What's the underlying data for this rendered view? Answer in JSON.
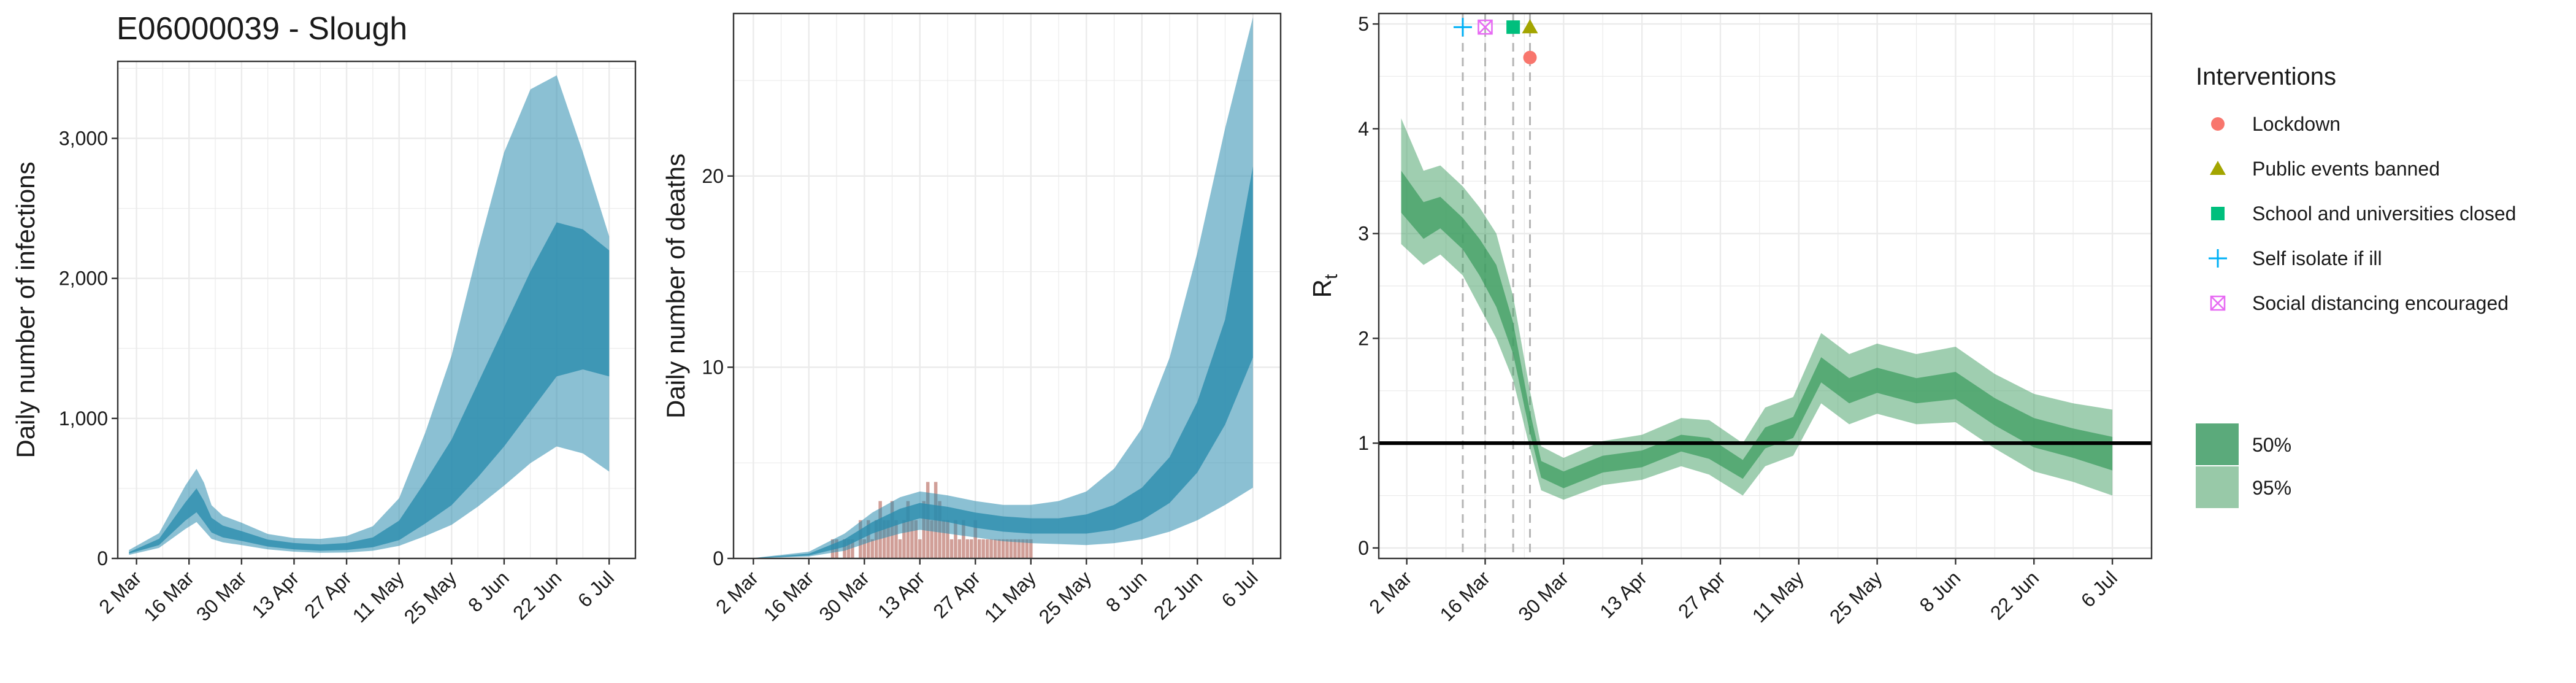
{
  "title": "E06000039 - Slough",
  "colors": {
    "infections_band": "#2B8CAE",
    "rt_band": "#3F9E62",
    "deaths_bar": "#C98E86",
    "panel_border": "#333333",
    "grid": "#EBEBEB",
    "lockdown": "#F8766D",
    "public_events": "#A3A500",
    "schools": "#00BF7D",
    "self_isolate": "#00B0F6",
    "social_distancing": "#E76BF3"
  },
  "legend": {
    "title": "Interventions",
    "items": [
      {
        "label": "Lockdown",
        "shape": "circle",
        "color": "#F8766D"
      },
      {
        "label": "Public events banned",
        "shape": "triangle",
        "color": "#A3A500"
      },
      {
        "label": "School and universities closed",
        "shape": "square",
        "color": "#00BF7D"
      },
      {
        "label": "Self isolate if ill",
        "shape": "plus",
        "color": "#00B0F6"
      },
      {
        "label": "Social distancing encouraged",
        "shape": "boxed-x",
        "color": "#E76BF3"
      }
    ],
    "bands": [
      {
        "label": "50%",
        "color": "#5BAA7B"
      },
      {
        "label": "95%",
        "color": "#98C9A8"
      }
    ]
  },
  "chart_data": [
    {
      "type": "area",
      "ylabel": "Daily number of infections",
      "x_tick_labels": [
        "2 Mar",
        "16 Mar",
        "30 Mar",
        "13 Apr",
        "27 Apr",
        "11 May",
        "25 May",
        "8 Jun",
        "22 Jun",
        "6 Jul"
      ],
      "y_ticks": [
        0,
        1000,
        2000,
        3000
      ],
      "y_tick_labels": [
        "0",
        "1,000",
        "2,000",
        "3,000"
      ],
      "ylim": [
        0,
        3550
      ],
      "x_range": [
        "2020-02-26",
        "2020-07-13"
      ],
      "x": [
        "2020-02-29",
        "2020-03-08",
        "2020-03-15",
        "2020-03-18",
        "2020-03-20",
        "2020-03-22",
        "2020-03-25",
        "2020-03-30",
        "2020-04-06",
        "2020-04-13",
        "2020-04-20",
        "2020-04-27",
        "2020-05-04",
        "2020-05-11",
        "2020-05-18",
        "2020-05-25",
        "2020-06-01",
        "2020-06-08",
        "2020-06-15",
        "2020-06-22",
        "2020-06-29",
        "2020-07-06"
      ],
      "median": [
        40,
        120,
        330,
        410,
        330,
        230,
        190,
        160,
        110,
        85,
        75,
        80,
        110,
        190,
        380,
        600,
        900,
        1200,
        1500,
        1800,
        1850,
        1750
      ],
      "q50_lower": [
        35,
        95,
        270,
        330,
        260,
        185,
        150,
        125,
        85,
        65,
        55,
        60,
        80,
        130,
        250,
        380,
        580,
        800,
        1050,
        1300,
        1350,
        1300
      ],
      "q50_upper": [
        45,
        140,
        400,
        500,
        410,
        290,
        235,
        195,
        135,
        110,
        100,
        110,
        150,
        270,
        550,
        850,
        1250,
        1650,
        2050,
        2400,
        2350,
        2200
      ],
      "q95_lower": [
        25,
        75,
        210,
        260,
        200,
        140,
        115,
        95,
        65,
        48,
        40,
        42,
        55,
        90,
        160,
        240,
        370,
        520,
        680,
        800,
        750,
        620
      ],
      "q95_upper": [
        60,
        180,
        520,
        640,
        540,
        380,
        305,
        255,
        175,
        145,
        140,
        160,
        230,
        430,
        900,
        1450,
        2200,
        2900,
        3350,
        3450,
        2900,
        2300
      ]
    },
    {
      "type": "bar",
      "ylabel": "Daily number of deaths",
      "x_tick_labels": [
        "2 Mar",
        "16 Mar",
        "30 Mar",
        "13 Apr",
        "27 Apr",
        "11 May",
        "25 May",
        "8 Jun",
        "22 Jun",
        "6 Jul"
      ],
      "y_ticks": [
        0,
        10,
        20
      ],
      "y_tick_labels": [
        "0",
        "10",
        "20"
      ],
      "ylim": [
        0,
        28.5
      ],
      "x_range": [
        "2020-02-26",
        "2020-07-13"
      ],
      "observed": {
        "start": "2020-03-21",
        "values": [
          0,
          1,
          1,
          0,
          1,
          1,
          1,
          0,
          2,
          1,
          2,
          1,
          2,
          3,
          2,
          2,
          3,
          2,
          1,
          2,
          3,
          2,
          2,
          1,
          3,
          4,
          2,
          4,
          3,
          2,
          2,
          1,
          2,
          1,
          2,
          1,
          1,
          2,
          1,
          1,
          1,
          1,
          1,
          1,
          1,
          1,
          1,
          1,
          1,
          1,
          1,
          1
        ]
      },
      "x": [
        "2020-03-01",
        "2020-03-16",
        "2020-03-25",
        "2020-04-01",
        "2020-04-08",
        "2020-04-13",
        "2020-04-20",
        "2020-04-27",
        "2020-05-04",
        "2020-05-11",
        "2020-05-18",
        "2020-05-25",
        "2020-06-01",
        "2020-06-08",
        "2020-06-15",
        "2020-06-22",
        "2020-06-29",
        "2020-07-06"
      ],
      "median": [
        0,
        0.2,
        0.8,
        1.6,
        2.2,
        2.5,
        2.3,
        2.0,
        1.8,
        1.7,
        1.7,
        1.8,
        2.1,
        2.8,
        4.0,
        6.2,
        9.5,
        14.0
      ],
      "q50_lower": [
        0,
        0.15,
        0.6,
        1.3,
        1.8,
        2.1,
        1.9,
        1.6,
        1.4,
        1.3,
        1.3,
        1.3,
        1.5,
        2.0,
        2.9,
        4.5,
        7.0,
        10.5
      ],
      "q50_upper": [
        0,
        0.25,
        1.0,
        1.9,
        2.6,
        2.9,
        2.7,
        2.4,
        2.2,
        2.1,
        2.1,
        2.3,
        2.8,
        3.7,
        5.3,
        8.2,
        12.5,
        20.5
      ],
      "q95_lower": [
        0,
        0.1,
        0.4,
        0.9,
        1.3,
        1.5,
        1.3,
        1.1,
        0.9,
        0.8,
        0.75,
        0.7,
        0.8,
        1.0,
        1.4,
        2.0,
        2.8,
        3.7
      ],
      "q95_upper": [
        0,
        0.35,
        1.3,
        2.4,
        3.2,
        3.5,
        3.3,
        3.0,
        2.8,
        2.8,
        3.0,
        3.5,
        4.7,
        6.8,
        10.5,
        16.0,
        22.5,
        28.3
      ]
    },
    {
      "type": "area",
      "ylabel": "R",
      "ylabel_subscript": "t",
      "x_tick_labels": [
        "2 Mar",
        "16 Mar",
        "30 Mar",
        "13 Apr",
        "27 Apr",
        "11 May",
        "25 May",
        "8 Jun",
        "22 Jun",
        "6 Jul"
      ],
      "y_ticks": [
        0,
        1,
        2,
        3,
        4,
        5
      ],
      "y_tick_labels": [
        "0",
        "1",
        "2",
        "3",
        "4",
        "5"
      ],
      "ylim": [
        -0.1,
        5.1
      ],
      "x_range": [
        "2020-02-26",
        "2020-07-13"
      ],
      "reference_line": 1,
      "interventions": [
        {
          "name": "Self isolate if ill",
          "date": "2020-03-12",
          "y": 4.97,
          "shape": "plus"
        },
        {
          "name": "Social distancing encouraged",
          "date": "2020-03-16",
          "y": 4.97,
          "shape": "boxed-x"
        },
        {
          "name": "School and universities closed",
          "date": "2020-03-21",
          "y": 4.97,
          "shape": "square"
        },
        {
          "name": "Public events banned",
          "date": "2020-03-24",
          "y": 4.97,
          "shape": "triangle"
        },
        {
          "name": "Lockdown",
          "date": "2020-03-24",
          "y": 4.68,
          "shape": "circle"
        }
      ],
      "x": [
        "2020-03-01",
        "2020-03-05",
        "2020-03-08",
        "2020-03-12",
        "2020-03-15",
        "2020-03-18",
        "2020-03-21",
        "2020-03-24",
        "2020-03-26",
        "2020-03-30",
        "2020-04-06",
        "2020-04-13",
        "2020-04-20",
        "2020-04-25",
        "2020-05-01",
        "2020-05-05",
        "2020-05-10",
        "2020-05-15",
        "2020-05-20",
        "2020-05-25",
        "2020-06-01",
        "2020-06-08",
        "2020-06-15",
        "2020-06-22",
        "2020-06-29",
        "2020-07-06"
      ],
      "median": [
        3.4,
        3.1,
        3.2,
        3.0,
        2.8,
        2.5,
        2.0,
        1.2,
        0.75,
        0.65,
        0.8,
        0.85,
        1.0,
        0.95,
        0.75,
        1.05,
        1.15,
        1.7,
        1.5,
        1.6,
        1.5,
        1.55,
        1.3,
        1.1,
        1.0,
        0.9
      ],
      "q50_lower": [
        3.2,
        2.95,
        3.05,
        2.85,
        2.6,
        2.3,
        1.85,
        1.1,
        0.67,
        0.57,
        0.72,
        0.77,
        0.92,
        0.85,
        0.66,
        0.95,
        1.05,
        1.58,
        1.38,
        1.48,
        1.38,
        1.42,
        1.17,
        0.96,
        0.86,
        0.74
      ],
      "q50_upper": [
        3.6,
        3.3,
        3.35,
        3.15,
        2.95,
        2.7,
        2.15,
        1.3,
        0.83,
        0.73,
        0.88,
        0.93,
        1.08,
        1.05,
        0.84,
        1.15,
        1.25,
        1.82,
        1.62,
        1.72,
        1.62,
        1.68,
        1.43,
        1.24,
        1.14,
        1.06
      ],
      "q95_lower": [
        2.9,
        2.7,
        2.8,
        2.6,
        2.3,
        2.0,
        1.6,
        0.95,
        0.55,
        0.46,
        0.6,
        0.65,
        0.78,
        0.7,
        0.5,
        0.78,
        0.88,
        1.38,
        1.18,
        1.28,
        1.18,
        1.2,
        0.95,
        0.73,
        0.63,
        0.5
      ],
      "q95_upper": [
        4.1,
        3.6,
        3.65,
        3.45,
        3.25,
        3.0,
        2.4,
        1.5,
        0.97,
        0.86,
        1.02,
        1.08,
        1.24,
        1.22,
        1.0,
        1.34,
        1.44,
        2.05,
        1.85,
        1.95,
        1.85,
        1.92,
        1.66,
        1.47,
        1.38,
        1.32
      ]
    }
  ]
}
